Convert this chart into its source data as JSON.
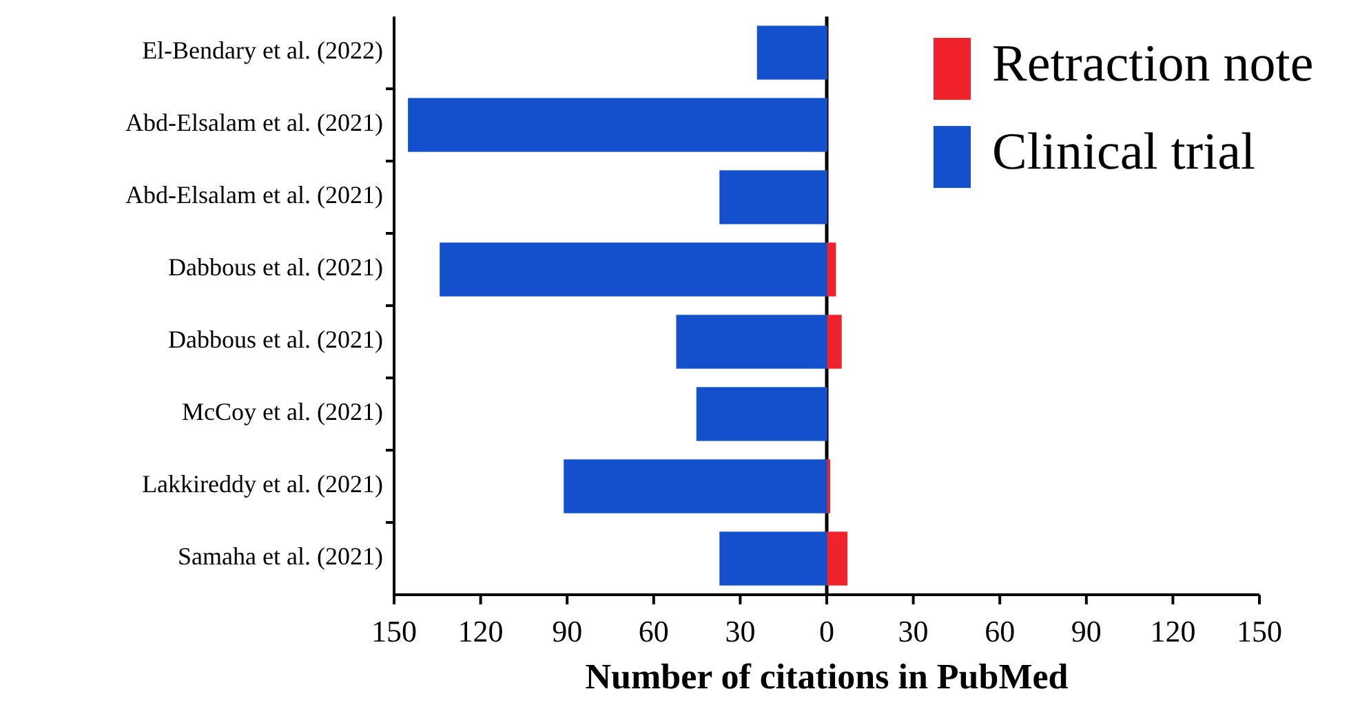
{
  "chart_data": {
    "type": "bar",
    "orientation": "horizontal",
    "stacked": true,
    "xlabel": "Number of citations in PubMed",
    "categories": [
      "El-Bendary et al. (2022)",
      "Abd-Elsalam et al. (2021)",
      "Abd-Elsalam et al. (2021)",
      "Dabbous et al. (2021)",
      "Dabbous et al. (2021)",
      "McCoy et al. (2021)",
      "Lakkireddy et al. (2021)",
      "Samaha et al. (2021)"
    ],
    "series": [
      {
        "name": "Retraction note",
        "color": "#f0222c",
        "values": [
          0,
          0,
          0,
          3,
          5,
          0,
          1,
          7
        ]
      },
      {
        "name": "Clinical trial",
        "color": "#1450cc",
        "values": [
          -24,
          -145,
          -37,
          -134,
          -52,
          -45,
          -91,
          -37
        ]
      }
    ],
    "xlim": [
      -150,
      150
    ],
    "xticks": [
      {
        "value": -150,
        "label": "150"
      },
      {
        "value": -120,
        "label": "120"
      },
      {
        "value": -90,
        "label": "90"
      },
      {
        "value": -60,
        "label": "60"
      },
      {
        "value": -30,
        "label": "30"
      },
      0,
      30,
      60,
      90,
      120,
      150
    ],
    "legend": "top right"
  }
}
